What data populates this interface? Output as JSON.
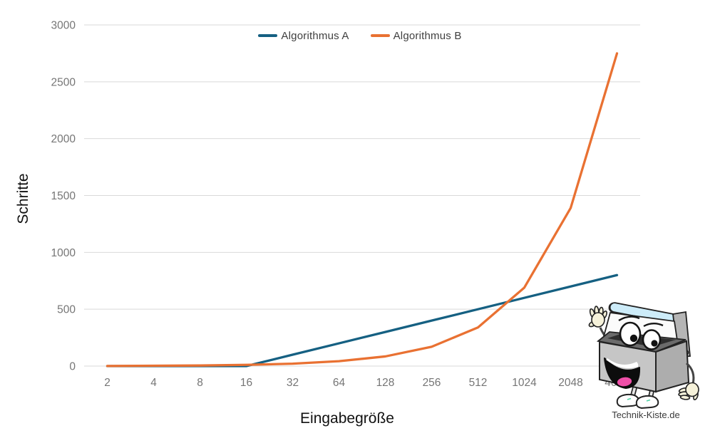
{
  "page": {
    "background": "#ffffff"
  },
  "chart_data": {
    "type": "line",
    "title": "",
    "x_categories": [
      "2",
      "4",
      "8",
      "16",
      "32",
      "64",
      "128",
      "256",
      "512",
      "1024",
      "2048",
      "4096"
    ],
    "series": [
      {
        "name": "Algorithmus A",
        "color": "#156082",
        "values": [
          0,
          0,
          0,
          0,
          100,
          200,
          300,
          400,
          500,
          600,
          700,
          800
        ]
      },
      {
        "name": "Algorithmus B",
        "color": "#E97132",
        "values": [
          1,
          3,
          5,
          11,
          21,
          43,
          85,
          170,
          340,
          690,
          1390,
          2750
        ]
      }
    ],
    "xlabel": "Eingabegröße",
    "ylabel": "Schritte",
    "ylim": [
      0,
      3000
    ],
    "yticks": [
      0,
      500,
      1000,
      1500,
      2000,
      2500,
      3000
    ],
    "grid": "horizontal",
    "legend_position": "top-center",
    "x_scale_note": "powers of two, equally spaced categories"
  },
  "branding": {
    "watermark": "Technik-Kiste.de",
    "mascot": "toolbox-cartoon-character"
  },
  "colors": {
    "grid": "#d9d9d9",
    "tick_label": "#757575",
    "axis_title": "#111111",
    "legend_text": "#3f3f3f",
    "handle_blue": "#cdecf9",
    "box_gray": "#c6c6c6"
  }
}
